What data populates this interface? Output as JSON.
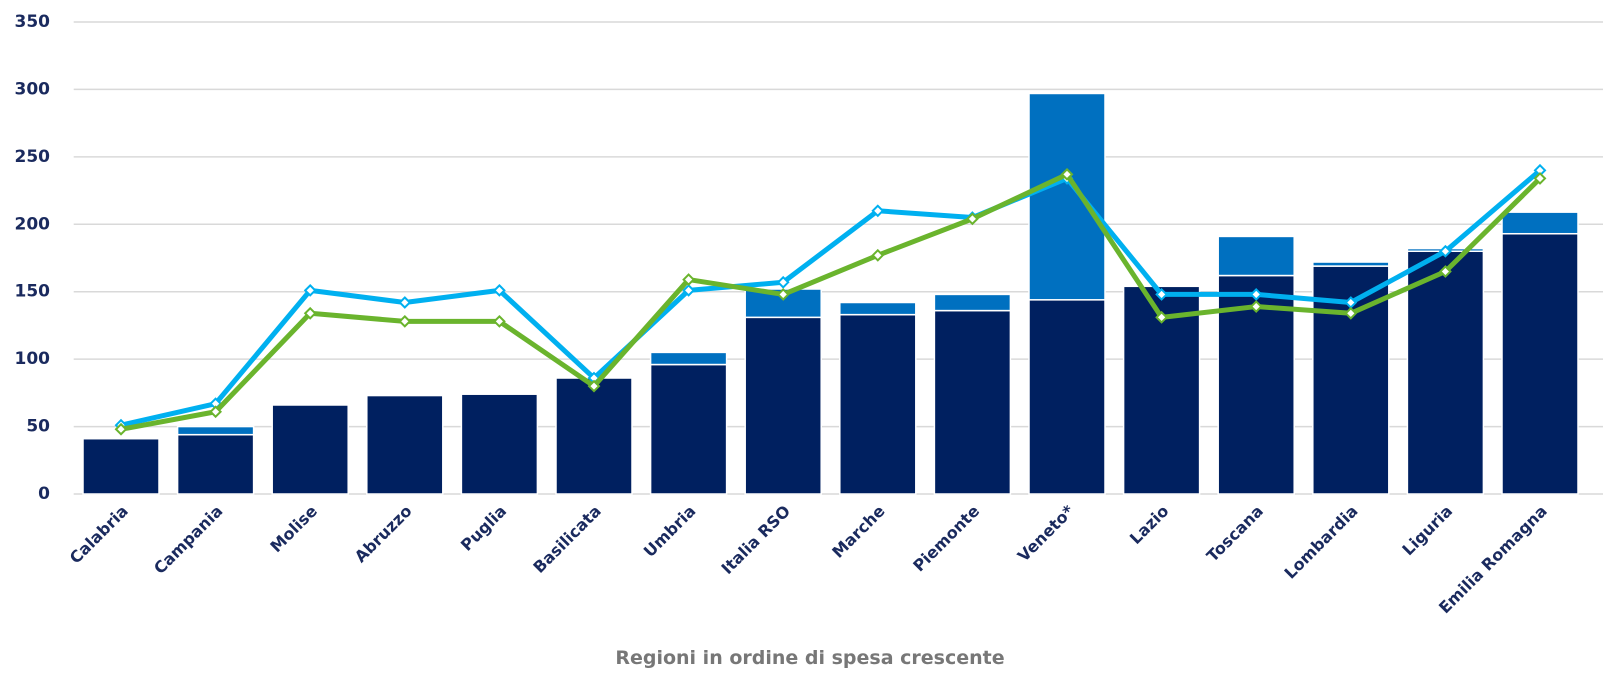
{
  "chart_data": {
    "type": "stacked-bar-line",
    "x_label": "Regioni in ordine di spesa crescente",
    "categories": [
      "Calabria",
      "Campania",
      "Molise",
      "Abruzzo",
      "Puglia",
      "Basilicata",
      "Umbria",
      "Italia RSO",
      "Marche",
      "Piemonte",
      "Veneto*",
      "Lazio",
      "Toscana",
      "Lombardia",
      "Liguria",
      "Emilia Romagna"
    ],
    "series": [
      {
        "kind": "bar",
        "color": "#002060",
        "values": [
          41,
          44,
          66,
          73,
          74,
          86,
          96,
          131,
          133,
          136,
          144,
          154,
          162,
          169,
          180,
          193
        ]
      },
      {
        "kind": "bar",
        "color": "#0070c0",
        "values": [
          0,
          6,
          0,
          0,
          0,
          0,
          9,
          21,
          9,
          12,
          153,
          0,
          29,
          3,
          2,
          16
        ]
      },
      {
        "kind": "line",
        "color": "#00b0f0",
        "values": [
          51,
          67,
          151,
          142,
          151,
          86,
          151,
          157,
          210,
          205,
          234,
          148,
          148,
          142,
          180,
          240
        ]
      },
      {
        "kind": "line",
        "color": "#6ab42d",
        "values": [
          48,
          61,
          134,
          128,
          128,
          80,
          159,
          148,
          177,
          204,
          237,
          131,
          139,
          134,
          165,
          234
        ]
      }
    ],
    "ylim": [
      0,
      350
    ],
    "yticks": [
      0,
      50,
      100,
      150,
      200,
      250,
      300,
      350
    ],
    "grid": true
  }
}
